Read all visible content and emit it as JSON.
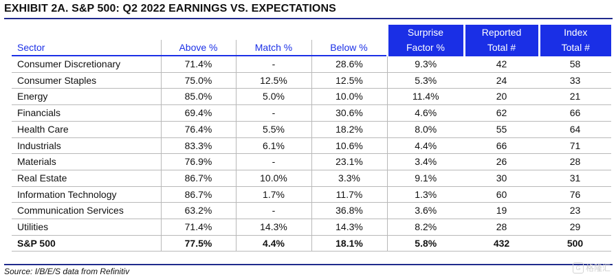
{
  "title": "EXHIBIT 2A.  S&P 500: Q2 2022 EARNINGS VS. EXPECTATIONS",
  "table": {
    "top_headers": [
      "Surprise",
      "Reported",
      "Index"
    ],
    "columns": [
      "Sector",
      "Above %",
      "Match %",
      "Below %",
      "Factor %",
      "Total #",
      "Total #"
    ],
    "rows": [
      [
        "Consumer Discretionary",
        "71.4%",
        "-",
        "28.6%",
        "9.3%",
        "42",
        "58"
      ],
      [
        "Consumer Staples",
        "75.0%",
        "12.5%",
        "12.5%",
        "5.3%",
        "24",
        "33"
      ],
      [
        "Energy",
        "85.0%",
        "5.0%",
        "10.0%",
        "11.4%",
        "20",
        "21"
      ],
      [
        "Financials",
        "69.4%",
        "-",
        "30.6%",
        "4.6%",
        "62",
        "66"
      ],
      [
        "Health Care",
        "76.4%",
        "5.5%",
        "18.2%",
        "8.0%",
        "55",
        "64"
      ],
      [
        "Industrials",
        "83.3%",
        "6.1%",
        "10.6%",
        "4.4%",
        "66",
        "71"
      ],
      [
        "Materials",
        "76.9%",
        "-",
        "23.1%",
        "3.4%",
        "26",
        "28"
      ],
      [
        "Real Estate",
        "86.7%",
        "10.0%",
        "3.3%",
        "9.1%",
        "30",
        "31"
      ],
      [
        "Information Technology",
        "86.7%",
        "1.7%",
        "11.7%",
        "1.3%",
        "60",
        "76"
      ],
      [
        "Communication Services",
        "63.2%",
        "-",
        "36.8%",
        "3.6%",
        "19",
        "23"
      ],
      [
        "Utilities",
        "71.4%",
        "14.3%",
        "14.3%",
        "8.2%",
        "28",
        "29"
      ]
    ],
    "total": [
      "S&P 500",
      "77.5%",
      "4.4%",
      "18.1%",
      "5.8%",
      "432",
      "500"
    ]
  },
  "source": "Source: I/B/E/S data from Refinitiv",
  "watermark": "格隆汇",
  "watermark_icon": "app-logo-icon",
  "colors": {
    "accent": "#1a2fe6",
    "rule": "#1f2a8c"
  }
}
